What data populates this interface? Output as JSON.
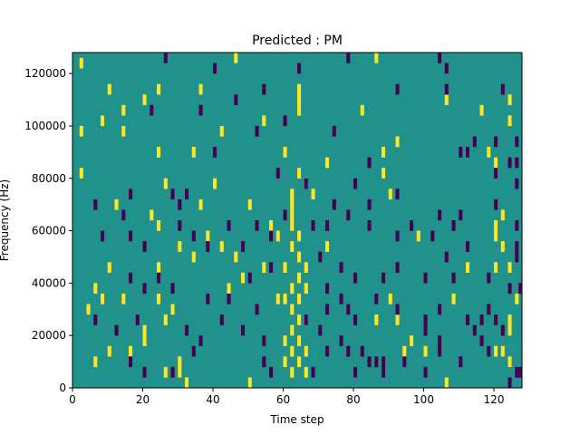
{
  "chart_data": {
    "type": "heatmap",
    "title": "Predicted : PM",
    "xlabel": "Time step",
    "ylabel": "Frequency (Hz)",
    "xlim": [
      0,
      128
    ],
    "ylim": [
      0,
      128000
    ],
    "x_ticks": [
      0,
      20,
      40,
      60,
      80,
      100,
      120
    ],
    "y_ticks": [
      0,
      20000,
      40000,
      60000,
      80000,
      100000,
      120000
    ],
    "grid": false,
    "colormap": {
      "background": "#21918c",
      "high": "#fde725",
      "low": "#440154"
    },
    "cell_size": {
      "time_steps": 1,
      "hz": 4000
    },
    "yellow_cells": [
      [
        2,
        122000
      ],
      [
        10,
        112000
      ],
      [
        24,
        112000
      ],
      [
        36,
        112000
      ],
      [
        46,
        124000
      ],
      [
        86,
        124000
      ],
      [
        20,
        108000
      ],
      [
        14,
        104000
      ],
      [
        82,
        104000
      ],
      [
        106,
        108000
      ],
      [
        116,
        104000
      ],
      [
        124,
        108000
      ],
      [
        8,
        100000
      ],
      [
        14,
        96000
      ],
      [
        42,
        96000
      ],
      [
        54,
        100000
      ],
      [
        64,
        104000
      ],
      [
        64,
        108000
      ],
      [
        64,
        112000
      ],
      [
        124,
        100000
      ],
      [
        2,
        96000
      ],
      [
        88,
        88000
      ],
      [
        92,
        92000
      ],
      [
        112,
        88000
      ],
      [
        118,
        88000
      ],
      [
        24,
        88000
      ],
      [
        34,
        88000
      ],
      [
        60,
        88000
      ],
      [
        72,
        84000
      ],
      [
        88,
        80000
      ],
      [
        120,
        84000
      ],
      [
        2,
        80000
      ],
      [
        26,
        76000
      ],
      [
        40,
        76000
      ],
      [
        64,
        80000
      ],
      [
        66,
        76000
      ],
      [
        68,
        72000
      ],
      [
        90,
        72000
      ],
      [
        120,
        80000
      ],
      [
        12,
        68000
      ],
      [
        22,
        64000
      ],
      [
        36,
        68000
      ],
      [
        50,
        68000
      ],
      [
        56,
        60000
      ],
      [
        58,
        56000
      ],
      [
        62,
        72000
      ],
      [
        62,
        68000
      ],
      [
        62,
        64000
      ],
      [
        62,
        60000
      ],
      [
        64,
        56000
      ],
      [
        62,
        52000
      ],
      [
        64,
        48000
      ],
      [
        66,
        44000
      ],
      [
        64,
        40000
      ],
      [
        62,
        36000
      ],
      [
        64,
        32000
      ],
      [
        62,
        28000
      ],
      [
        64,
        24000
      ],
      [
        62,
        20000
      ],
      [
        64,
        16000
      ],
      [
        62,
        12000
      ],
      [
        64,
        8000
      ],
      [
        62,
        4000
      ],
      [
        60,
        44000
      ],
      [
        60,
        32000
      ],
      [
        60,
        16000
      ],
      [
        60,
        8000
      ],
      [
        66,
        36000
      ],
      [
        66,
        24000
      ],
      [
        66,
        12000
      ],
      [
        66,
        4000
      ],
      [
        58,
        32000
      ],
      [
        24,
        60000
      ],
      [
        38,
        56000
      ],
      [
        42,
        52000
      ],
      [
        46,
        48000
      ],
      [
        48,
        40000
      ],
      [
        54,
        44000
      ],
      [
        30,
        52000
      ],
      [
        10,
        44000
      ],
      [
        24,
        44000
      ],
      [
        34,
        48000
      ],
      [
        44,
        36000
      ],
      [
        72,
        52000
      ],
      [
        98,
        56000
      ],
      [
        112,
        44000
      ],
      [
        120,
        56000
      ],
      [
        122,
        64000
      ],
      [
        120,
        60000
      ],
      [
        122,
        52000
      ],
      [
        124,
        44000
      ],
      [
        120,
        44000
      ],
      [
        6,
        36000
      ],
      [
        8,
        32000
      ],
      [
        4,
        28000
      ],
      [
        14,
        32000
      ],
      [
        24,
        32000
      ],
      [
        26,
        24000
      ],
      [
        28,
        28000
      ],
      [
        20,
        20000
      ],
      [
        20,
        16000
      ],
      [
        16,
        12000
      ],
      [
        10,
        12000
      ],
      [
        6,
        8000
      ],
      [
        26,
        4000
      ],
      [
        30,
        4000
      ],
      [
        30,
        8000
      ],
      [
        32,
        0
      ],
      [
        50,
        0
      ],
      [
        86,
        24000
      ],
      [
        90,
        32000
      ],
      [
        92,
        24000
      ],
      [
        96,
        16000
      ],
      [
        94,
        12000
      ],
      [
        100,
        12000
      ],
      [
        108,
        32000
      ],
      [
        106,
        0
      ],
      [
        120,
        12000
      ],
      [
        122,
        12000
      ],
      [
        124,
        24000
      ],
      [
        124,
        20000
      ],
      [
        126,
        32000
      ],
      [
        124,
        8000
      ]
    ],
    "purple_cells": [
      [
        26,
        124000
      ],
      [
        40,
        120000
      ],
      [
        64,
        120000
      ],
      [
        78,
        124000
      ],
      [
        104,
        124000
      ],
      [
        106,
        120000
      ],
      [
        92,
        112000
      ],
      [
        106,
        112000
      ],
      [
        122,
        112000
      ],
      [
        54,
        112000
      ],
      [
        46,
        108000
      ],
      [
        36,
        104000
      ],
      [
        22,
        104000
      ],
      [
        52,
        96000
      ],
      [
        60,
        100000
      ],
      [
        74,
        96000
      ],
      [
        40,
        88000
      ],
      [
        112,
        88000
      ],
      [
        110,
        88000
      ],
      [
        114,
        92000
      ],
      [
        120,
        92000
      ],
      [
        126,
        92000
      ],
      [
        124,
        84000
      ],
      [
        126,
        84000
      ],
      [
        84,
        84000
      ],
      [
        58,
        80000
      ],
      [
        66,
        76000
      ],
      [
        80,
        76000
      ],
      [
        120,
        80000
      ],
      [
        126,
        76000
      ],
      [
        16,
        72000
      ],
      [
        28,
        72000
      ],
      [
        32,
        72000
      ],
      [
        30,
        68000
      ],
      [
        74,
        68000
      ],
      [
        84,
        68000
      ],
      [
        92,
        72000
      ],
      [
        120,
        68000
      ],
      [
        6,
        68000
      ],
      [
        14,
        64000
      ],
      [
        16,
        56000
      ],
      [
        30,
        60000
      ],
      [
        34,
        56000
      ],
      [
        44,
        60000
      ],
      [
        48,
        52000
      ],
      [
        52,
        60000
      ],
      [
        56,
        56000
      ],
      [
        60,
        64000
      ],
      [
        68,
        60000
      ],
      [
        72,
        60000
      ],
      [
        78,
        64000
      ],
      [
        84,
        60000
      ],
      [
        92,
        56000
      ],
      [
        96,
        60000
      ],
      [
        102,
        56000
      ],
      [
        104,
        64000
      ],
      [
        108,
        60000
      ],
      [
        110,
        64000
      ],
      [
        112,
        52000
      ],
      [
        126,
        60000
      ],
      [
        126,
        52000
      ],
      [
        126,
        48000
      ],
      [
        8,
        56000
      ],
      [
        20,
        52000
      ],
      [
        38,
        52000
      ],
      [
        50,
        40000
      ],
      [
        56,
        44000
      ],
      [
        70,
        48000
      ],
      [
        76,
        44000
      ],
      [
        80,
        40000
      ],
      [
        88,
        40000
      ],
      [
        92,
        44000
      ],
      [
        100,
        40000
      ],
      [
        106,
        48000
      ],
      [
        108,
        40000
      ],
      [
        118,
        40000
      ],
      [
        124,
        36000
      ],
      [
        128,
        36000
      ],
      [
        24,
        40000
      ],
      [
        16,
        40000
      ],
      [
        28,
        36000
      ],
      [
        20,
        36000
      ],
      [
        38,
        32000
      ],
      [
        44,
        32000
      ],
      [
        52,
        28000
      ],
      [
        72,
        36000
      ],
      [
        76,
        32000
      ],
      [
        86,
        32000
      ],
      [
        92,
        28000
      ],
      [
        100,
        24000
      ],
      [
        104,
        28000
      ],
      [
        116,
        24000
      ],
      [
        118,
        28000
      ],
      [
        6,
        24000
      ],
      [
        12,
        20000
      ],
      [
        18,
        24000
      ],
      [
        32,
        20000
      ],
      [
        36,
        16000
      ],
      [
        42,
        24000
      ],
      [
        48,
        20000
      ],
      [
        54,
        16000
      ],
      [
        66,
        24000
      ],
      [
        70,
        20000
      ],
      [
        76,
        16000
      ],
      [
        80,
        24000
      ],
      [
        82,
        12000
      ],
      [
        86,
        8000
      ],
      [
        94,
        8000
      ],
      [
        100,
        20000
      ],
      [
        104,
        16000
      ],
      [
        112,
        24000
      ],
      [
        114,
        20000
      ],
      [
        116,
        16000
      ],
      [
        120,
        24000
      ],
      [
        122,
        20000
      ],
      [
        16,
        8000
      ],
      [
        20,
        4000
      ],
      [
        28,
        4000
      ],
      [
        34,
        12000
      ],
      [
        54,
        8000
      ],
      [
        56,
        4000
      ],
      [
        68,
        4000
      ],
      [
        72,
        12000
      ],
      [
        78,
        12000
      ],
      [
        80,
        4000
      ],
      [
        84,
        8000
      ],
      [
        88,
        4000
      ],
      [
        88,
        8000
      ],
      [
        100,
        4000
      ],
      [
        104,
        12000
      ],
      [
        110,
        8000
      ],
      [
        118,
        12000
      ],
      [
        124,
        0
      ],
      [
        128,
        4000
      ],
      [
        126,
        4000
      ],
      [
        72,
        28000
      ],
      [
        78,
        28000
      ]
    ]
  }
}
